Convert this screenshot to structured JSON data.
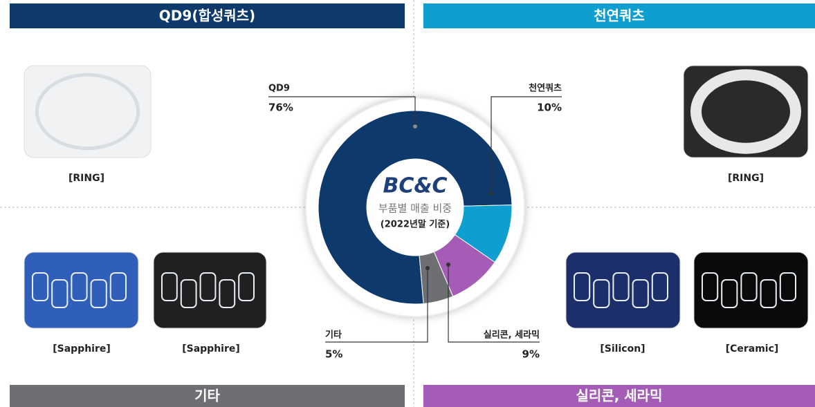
{
  "chart_data": {
    "type": "donut",
    "categories": [
      "QD9",
      "천연쿼츠",
      "실리콘, 세라믹",
      "기타"
    ],
    "values": [
      76,
      10,
      9,
      5
    ],
    "value_labels": [
      "76%",
      "10%",
      "9%",
      "5%"
    ],
    "colors": [
      "#0e3a6b",
      "#0e9fd0",
      "#a45cb6",
      "#6d6f72"
    ],
    "center_logo": "BC&C",
    "center_title": "부품별 매출 비중",
    "center_subtitle": "(2022년말 기준)"
  },
  "panels": [
    {
      "header": "QD9(합성쿼츠)",
      "color": "#0e3a6b",
      "captions": [
        "[RING]"
      ]
    },
    {
      "header": "천연쿼츠",
      "color": "#0e9fd0",
      "captions": [
        "[RING]"
      ]
    },
    {
      "header": "기타",
      "color": "#6d6f72",
      "captions": [
        "[Sapphire]",
        "[Sapphire]"
      ]
    },
    {
      "header": "실리콘, 세라믹",
      "color": "#a45cb6",
      "captions": [
        "[Silicon]",
        "[Ceramic]"
      ]
    }
  ]
}
